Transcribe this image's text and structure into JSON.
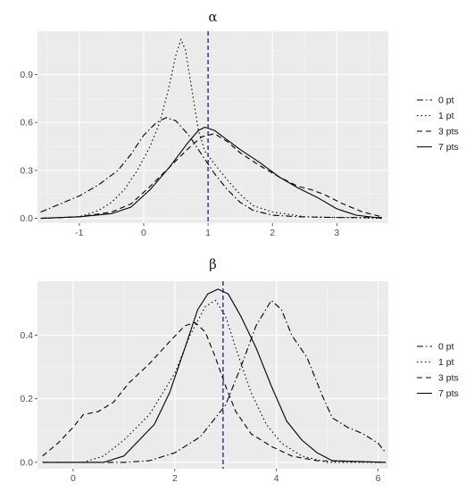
{
  "chart_data": [
    {
      "type": "line",
      "title": "α",
      "xlim": [
        -1.65,
        3.8
      ],
      "ylim": [
        -0.03,
        1.17
      ],
      "xticks": [
        -1,
        0,
        1,
        2,
        3
      ],
      "xtick_labels": [
        "-1",
        "0",
        "1",
        "2",
        "3"
      ],
      "yticks": [
        0.0,
        0.3,
        0.6,
        0.9
      ],
      "ytick_labels": [
        "0.0",
        "0.3",
        "0.6",
        "0.9"
      ],
      "reference_line": {
        "x": 1.0,
        "color": "#0000cc",
        "style": "dashed"
      },
      "grid": true,
      "legend_position": "right",
      "series": [
        {
          "name": "0 pt",
          "dash": "dotdash",
          "color": "#000000",
          "points": [
            [
              -1.6,
              0.04
            ],
            [
              -1.3,
              0.09
            ],
            [
              -1.0,
              0.14
            ],
            [
              -0.7,
              0.21
            ],
            [
              -0.4,
              0.3
            ],
            [
              -0.2,
              0.4
            ],
            [
              0.0,
              0.52
            ],
            [
              0.2,
              0.6
            ],
            [
              0.35,
              0.63
            ],
            [
              0.5,
              0.61
            ],
            [
              0.7,
              0.52
            ],
            [
              0.9,
              0.4
            ],
            [
              1.1,
              0.28
            ],
            [
              1.3,
              0.18
            ],
            [
              1.5,
              0.1
            ],
            [
              1.7,
              0.05
            ],
            [
              2.0,
              0.02
            ],
            [
              2.4,
              0.01
            ],
            [
              3.0,
              0.005
            ],
            [
              3.7,
              0.005
            ]
          ]
        },
        {
          "name": "1 pt",
          "dash": "dotted",
          "color": "#000000",
          "points": [
            [
              -1.6,
              0.0
            ],
            [
              -1.0,
              0.01
            ],
            [
              -0.7,
              0.05
            ],
            [
              -0.5,
              0.1
            ],
            [
              -0.3,
              0.18
            ],
            [
              -0.1,
              0.3
            ],
            [
              0.1,
              0.45
            ],
            [
              0.25,
              0.6
            ],
            [
              0.38,
              0.8
            ],
            [
              0.5,
              1.02
            ],
            [
              0.58,
              1.12
            ],
            [
              0.65,
              1.05
            ],
            [
              0.75,
              0.8
            ],
            [
              0.85,
              0.55
            ],
            [
              0.95,
              0.42
            ],
            [
              1.1,
              0.34
            ],
            [
              1.3,
              0.24
            ],
            [
              1.5,
              0.15
            ],
            [
              1.7,
              0.08
            ],
            [
              2.0,
              0.04
            ],
            [
              2.5,
              0.01
            ],
            [
              3.7,
              0.0
            ]
          ]
        },
        {
          "name": "3 pts",
          "dash": "dashed",
          "color": "#000000",
          "points": [
            [
              -1.6,
              0.0
            ],
            [
              -1.0,
              0.01
            ],
            [
              -0.5,
              0.04
            ],
            [
              -0.2,
              0.09
            ],
            [
              0.1,
              0.2
            ],
            [
              0.4,
              0.32
            ],
            [
              0.7,
              0.44
            ],
            [
              0.9,
              0.51
            ],
            [
              1.1,
              0.53
            ],
            [
              1.3,
              0.48
            ],
            [
              1.5,
              0.41
            ],
            [
              1.8,
              0.33
            ],
            [
              2.1,
              0.26
            ],
            [
              2.4,
              0.2
            ],
            [
              2.6,
              0.18
            ],
            [
              2.8,
              0.15
            ],
            [
              3.1,
              0.09
            ],
            [
              3.4,
              0.04
            ],
            [
              3.7,
              0.01
            ]
          ]
        },
        {
          "name": "7 pts",
          "dash": "solid",
          "color": "#000000",
          "points": [
            [
              -1.6,
              0.0
            ],
            [
              -1.0,
              0.01
            ],
            [
              -0.5,
              0.03
            ],
            [
              -0.2,
              0.07
            ],
            [
              0.1,
              0.18
            ],
            [
              0.4,
              0.32
            ],
            [
              0.7,
              0.48
            ],
            [
              0.85,
              0.55
            ],
            [
              0.95,
              0.57
            ],
            [
              1.1,
              0.55
            ],
            [
              1.3,
              0.49
            ],
            [
              1.5,
              0.43
            ],
            [
              1.8,
              0.35
            ],
            [
              2.1,
              0.26
            ],
            [
              2.4,
              0.19
            ],
            [
              2.7,
              0.13
            ],
            [
              3.0,
              0.06
            ],
            [
              3.3,
              0.02
            ],
            [
              3.7,
              0.0
            ]
          ]
        }
      ]
    },
    {
      "type": "line",
      "title": "β",
      "xlim": [
        -0.7,
        6.2
      ],
      "ylim": [
        -0.02,
        0.57
      ],
      "xticks": [
        0,
        2,
        4,
        6
      ],
      "xtick_labels": [
        "0",
        "2",
        "4",
        "6"
      ],
      "yticks": [
        0.0,
        0.2,
        0.4
      ],
      "ytick_labels": [
        "0.0",
        "0.2",
        "0.4"
      ],
      "reference_line": {
        "x": 2.95,
        "color": "#0000cc",
        "style": "dashed"
      },
      "grid": true,
      "legend_position": "right",
      "series": [
        {
          "name": "0 pt",
          "dash": "dotdash",
          "color": "#000000",
          "points": [
            [
              -0.6,
              0.0
            ],
            [
              1.0,
              0.0
            ],
            [
              1.5,
              0.005
            ],
            [
              2.0,
              0.03
            ],
            [
              2.5,
              0.08
            ],
            [
              3.0,
              0.18
            ],
            [
              3.3,
              0.3
            ],
            [
              3.6,
              0.43
            ],
            [
              3.9,
              0.51
            ],
            [
              4.1,
              0.48
            ],
            [
              4.3,
              0.4
            ],
            [
              4.6,
              0.33
            ],
            [
              4.9,
              0.21
            ],
            [
              5.1,
              0.14
            ],
            [
              5.4,
              0.11
            ],
            [
              5.7,
              0.09
            ],
            [
              6.0,
              0.06
            ],
            [
              6.15,
              0.03
            ]
          ]
        },
        {
          "name": "1 pt",
          "dash": "dotted",
          "color": "#000000",
          "points": [
            [
              -0.6,
              0.0
            ],
            [
              0.2,
              0.0
            ],
            [
              0.6,
              0.02
            ],
            [
              1.0,
              0.07
            ],
            [
              1.5,
              0.15
            ],
            [
              2.0,
              0.28
            ],
            [
              2.3,
              0.4
            ],
            [
              2.6,
              0.49
            ],
            [
              2.8,
              0.51
            ],
            [
              3.0,
              0.46
            ],
            [
              3.2,
              0.36
            ],
            [
              3.5,
              0.22
            ],
            [
              3.8,
              0.12
            ],
            [
              4.1,
              0.06
            ],
            [
              4.5,
              0.02
            ],
            [
              5.0,
              0.0
            ],
            [
              6.15,
              0.0
            ]
          ]
        },
        {
          "name": "3 pts",
          "dash": "dashed",
          "color": "#000000",
          "points": [
            [
              -0.6,
              0.02
            ],
            [
              -0.3,
              0.06
            ],
            [
              0.0,
              0.11
            ],
            [
              0.2,
              0.15
            ],
            [
              0.5,
              0.16
            ],
            [
              0.8,
              0.19
            ],
            [
              1.1,
              0.25
            ],
            [
              1.5,
              0.31
            ],
            [
              1.9,
              0.38
            ],
            [
              2.2,
              0.43
            ],
            [
              2.4,
              0.44
            ],
            [
              2.6,
              0.41
            ],
            [
              2.8,
              0.33
            ],
            [
              3.0,
              0.24
            ],
            [
              3.2,
              0.16
            ],
            [
              3.5,
              0.09
            ],
            [
              3.9,
              0.05
            ],
            [
              4.3,
              0.02
            ],
            [
              4.8,
              0.005
            ],
            [
              6.15,
              0.0
            ]
          ]
        },
        {
          "name": "7 pts",
          "dash": "solid",
          "color": "#000000",
          "points": [
            [
              -0.6,
              0.0
            ],
            [
              0.6,
              0.0
            ],
            [
              1.0,
              0.02
            ],
            [
              1.3,
              0.07
            ],
            [
              1.6,
              0.12
            ],
            [
              1.9,
              0.22
            ],
            [
              2.2,
              0.36
            ],
            [
              2.45,
              0.48
            ],
            [
              2.65,
              0.53
            ],
            [
              2.85,
              0.545
            ],
            [
              3.05,
              0.53
            ],
            [
              3.3,
              0.46
            ],
            [
              3.6,
              0.36
            ],
            [
              3.9,
              0.24
            ],
            [
              4.2,
              0.13
            ],
            [
              4.5,
              0.07
            ],
            [
              4.8,
              0.03
            ],
            [
              5.1,
              0.005
            ],
            [
              6.15,
              0.0
            ]
          ]
        }
      ]
    }
  ]
}
